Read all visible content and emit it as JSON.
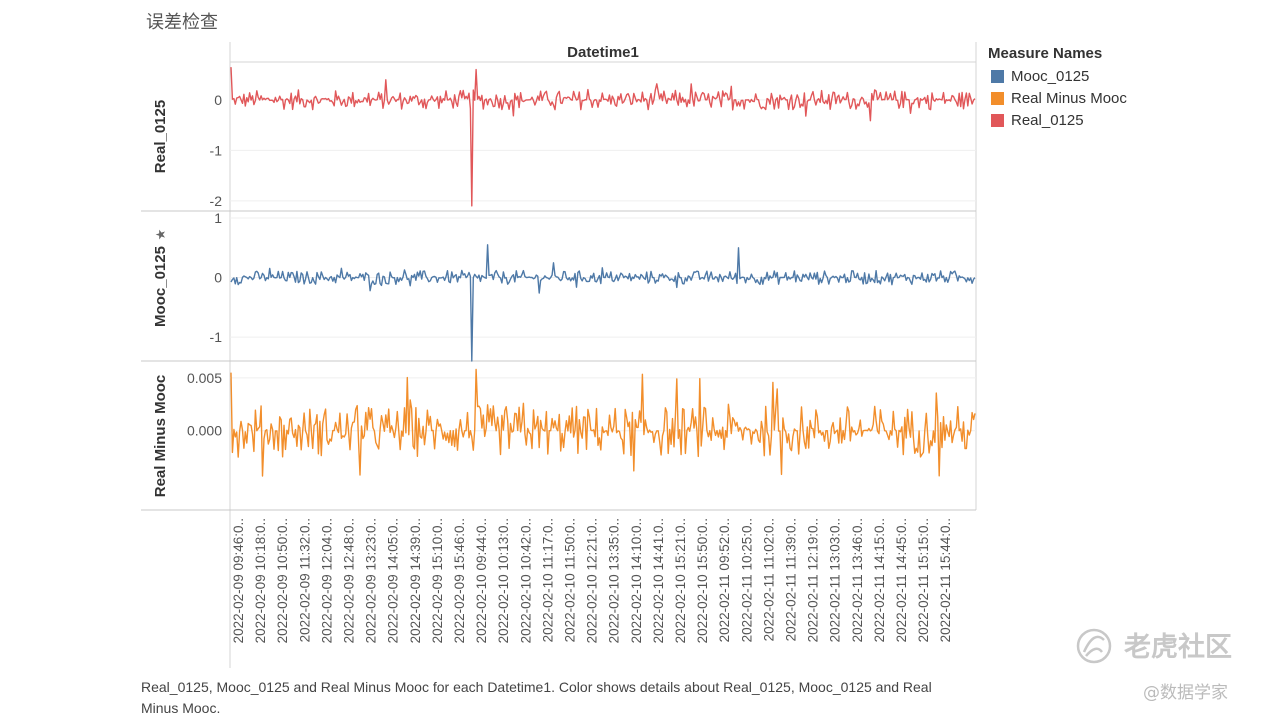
{
  "title": "误差检查",
  "chart_data": {
    "type": "line",
    "x_label": "Datetime1",
    "x_tick_labels": [
      "2022-02-09 09:46:0..",
      "2022-02-09 10:18:0..",
      "2022-02-09 10:50:0..",
      "2022-02-09 11:32:0..",
      "2022-02-09 12:04:0..",
      "2022-02-09 12:48:0..",
      "2022-02-09 13:23:0..",
      "2022-02-09 14:05:0..",
      "2022-02-09 14:39:0..",
      "2022-02-09 15:10:0..",
      "2022-02-09 15:46:0..",
      "2022-02-10 09:44:0..",
      "2022-02-10 10:13:0..",
      "2022-02-10 10:42:0..",
      "2022-02-10 11:17:0..",
      "2022-02-10 11:50:0..",
      "2022-02-10 12:21:0..",
      "2022-02-10 13:35:0..",
      "2022-02-10 14:10:0..",
      "2022-02-10 14:41:0..",
      "2022-02-10 15:21:0..",
      "2022-02-10 15:50:0..",
      "2022-02-11 09:52:0..",
      "2022-02-11 10:25:0..",
      "2022-02-11 11:02:0..",
      "2022-02-11 11:39:0..",
      "2022-02-11 12:19:0..",
      "2022-02-11 13:03:0..",
      "2022-02-11 13:46:0..",
      "2022-02-11 14:15:0..",
      "2022-02-11 14:45:0..",
      "2022-02-11 15:15:0..",
      "2022-02-11 15:44:0.."
    ],
    "panes": [
      {
        "name": "Real_0125",
        "row_label": "Real_0125",
        "color": "#e15759",
        "ylim": [
          -2.2,
          0.75
        ],
        "yticks": [
          0,
          -1,
          -2
        ],
        "tick_labels": [
          "0",
          "-1",
          "-2"
        ],
        "spikes": [
          {
            "at": 0.323,
            "value": -2.1
          },
          {
            "at": 0.33,
            "value": 0.6
          },
          {
            "at": 0.0,
            "value": 0.65
          }
        ],
        "noise_amplitude": 0.2,
        "pinned": false
      },
      {
        "name": "Mooc_0125",
        "row_label": "Mooc_0125",
        "color": "#4e79a7",
        "ylim": [
          -1.4,
          1.1
        ],
        "yticks": [
          1,
          0,
          -1
        ],
        "tick_labels": [
          "1",
          "0",
          "-1"
        ],
        "spikes": [
          {
            "at": 0.323,
            "value": -1.4
          },
          {
            "at": 0.344,
            "value": 0.55
          },
          {
            "at": 0.682,
            "value": 0.5
          }
        ],
        "noise_amplitude": 0.12,
        "pinned": true
      },
      {
        "name": "Real Minus Mooc",
        "row_label": "Real Minus Mooc",
        "color": "#f28e2b",
        "ylim": [
          -0.0075,
          0.0065
        ],
        "yticks": [
          0.005,
          0.0
        ],
        "tick_labels": [
          "0.005",
          "0.000"
        ],
        "spikes": [
          {
            "at": 0.0,
            "value": 0.0055
          },
          {
            "at": 0.33,
            "value": 0.0058
          },
          {
            "at": 0.542,
            "value": -0.0038
          }
        ],
        "noise_amplitude": 0.0025,
        "pinned": false
      }
    ],
    "legend": {
      "title": "Measure Names",
      "position": "right",
      "items": [
        {
          "label": "Mooc_0125",
          "color": "#4e79a7"
        },
        {
          "label": "Real Minus Mooc",
          "color": "#f28e2b"
        },
        {
          "label": "Real_0125",
          "color": "#e15759"
        }
      ]
    },
    "grid": true
  },
  "caption": "Real_0125, Mooc_0125 and Real Minus Mooc for each Datetime1.  Color shows details about Real_0125, Mooc_0125 and Real Minus Mooc.",
  "watermark": {
    "logo_text": "老虎社区",
    "text": "@数据学家"
  }
}
